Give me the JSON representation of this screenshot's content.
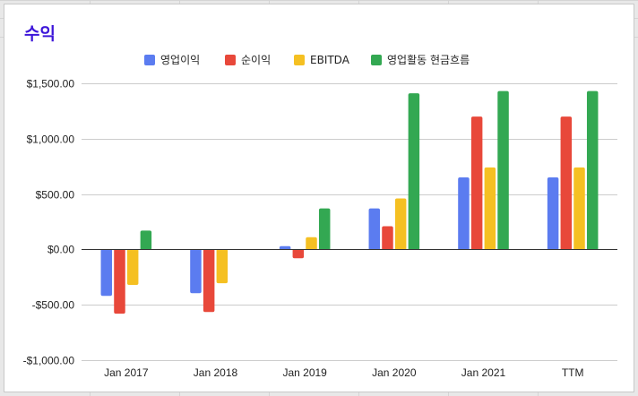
{
  "chart_data": {
    "type": "bar",
    "title": "수익",
    "categories": [
      "Jan 2017",
      "Jan 2018",
      "Jan 2019",
      "Jan 2020",
      "Jan 2021",
      "TTM"
    ],
    "series": [
      {
        "name": "영업이익",
        "color": "#5b7cf0",
        "values": [
          -420,
          -395,
          30,
          370,
          650,
          650
        ]
      },
      {
        "name": "순이익",
        "color": "#e8483a",
        "values": [
          -580,
          -565,
          -80,
          210,
          1200,
          1200
        ]
      },
      {
        "name": "EBITDA",
        "color": "#f5c022",
        "values": [
          -320,
          -305,
          110,
          460,
          740,
          740
        ]
      },
      {
        "name": "영업활동 현금흐름",
        "color": "#33a852",
        "values": [
          170,
          0,
          370,
          1410,
          1430,
          1430
        ]
      }
    ],
    "ylim": [
      -1000,
      1500
    ],
    "yticks": [
      -1000,
      -500,
      0,
      500,
      1000,
      1500
    ],
    "ytick_labels": [
      "-$1,000.00",
      "-$500.00",
      "$0.00",
      "$500.00",
      "$1,000.00",
      "$1,500.00"
    ],
    "xlabel": "",
    "ylabel": "",
    "legend_position": "top",
    "grid": true
  }
}
